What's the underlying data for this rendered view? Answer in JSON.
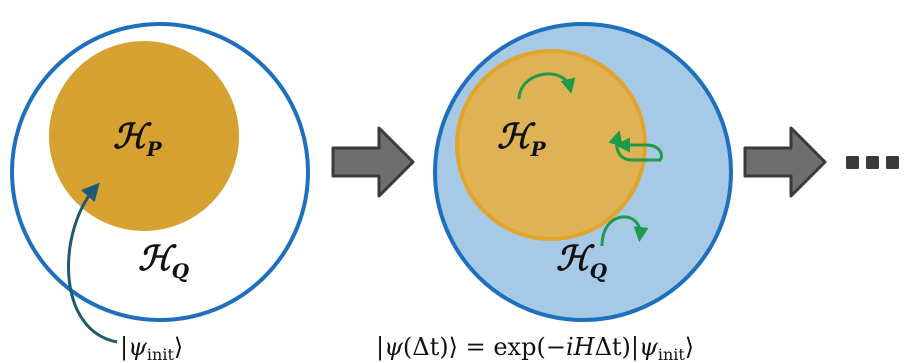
{
  "labels": {
    "hp_main": "ℋ",
    "hp_sub": "P",
    "hq_main": "ℋ",
    "hq_sub": "Q"
  },
  "initial_state": {
    "open": "|",
    "psi": "ψ",
    "sub": "init",
    "close": "⟩"
  },
  "evolution": {
    "lhs_open": "|",
    "psi": "ψ",
    "arg": "(Δt)",
    "lhs_close": "⟩ = exp(−",
    "i": "i",
    "H": "H",
    "dt": "Δt)|",
    "psi2": "ψ",
    "sub": "init",
    "close": "⟩"
  },
  "colors": {
    "ring": "#1f6fbf",
    "gold": "#d6a131",
    "gold_light": "#dfb256",
    "gold_edge": "#e2a42b",
    "blue_fill": "#a6c9e6",
    "green": "#1e9a4a",
    "teal_arrow": "#1f5a73",
    "arrow_fill": "#6e6e6e",
    "arrow_edge": "#3a3a3a",
    "dots": "#3a3a3a"
  }
}
